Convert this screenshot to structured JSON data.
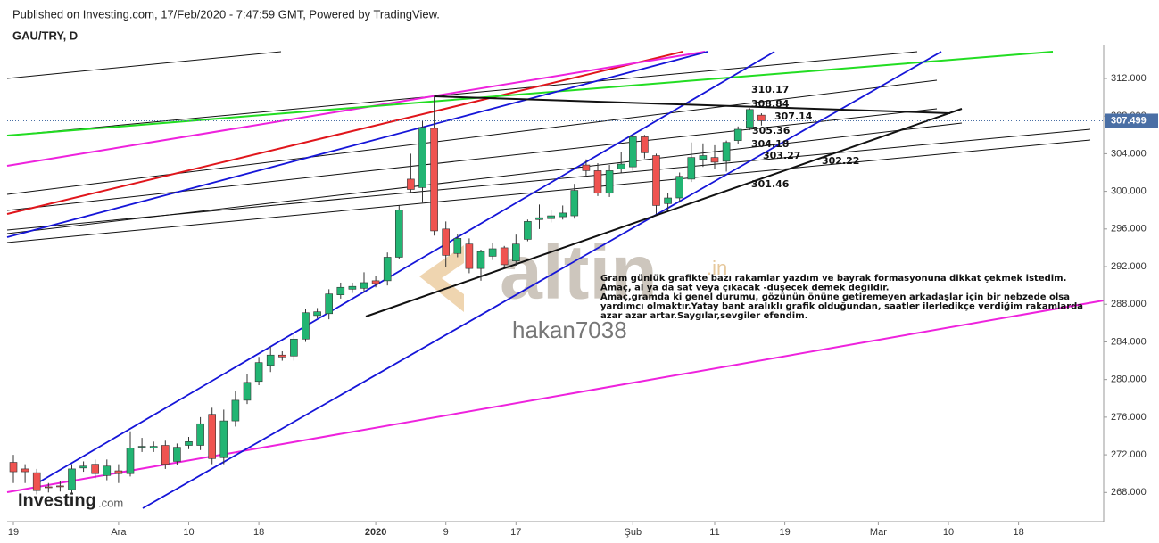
{
  "chart_data": {
    "type": "candlestick",
    "title": "GAU/TRY, D",
    "subtitle": "Published on Investing.com, 17/Feb/2020 - 7:47:59 GMT, Powered by TradingView.",
    "watermark": [
      "altin",
      ".in"
    ],
    "author": "hakan7038",
    "logo": [
      "Investing",
      ".com"
    ],
    "categories": [
      "19",
      null,
      null,
      null,
      null,
      null,
      null,
      null,
      null,
      "Ara",
      null,
      null,
      null,
      null,
      null,
      "10",
      null,
      null,
      null,
      null,
      null,
      "18",
      null,
      null,
      null,
      null,
      null,
      null,
      null,
      null,
      null,
      "2020",
      null,
      null,
      null,
      null,
      null,
      "9",
      null,
      null,
      null,
      null,
      null,
      "17",
      null,
      null,
      null,
      null,
      null,
      null,
      null,
      null,
      null,
      "Şub",
      null,
      null,
      null,
      null,
      null,
      null,
      "11",
      null,
      null,
      null,
      null,
      null,
      "19",
      null,
      null,
      null,
      null,
      null,
      null,
      null,
      "Mar",
      null,
      null,
      null,
      null,
      null,
      "10",
      null,
      null,
      null,
      null,
      null,
      "18",
      null,
      null,
      null,
      null,
      null,
      null,
      null
    ],
    "open": [
      271.2,
      270.5,
      270.1,
      268.6,
      268.7,
      268.3,
      270.6,
      271,
      269.8,
      270.3,
      270,
      272.9,
      272.7,
      273,
      271.3,
      273,
      273,
      276.3,
      271.7,
      275.6,
      277.8,
      279.8,
      281.5,
      282.6,
      282.5,
      284.3,
      286.8,
      287,
      289,
      289.6,
      289.7,
      290.5,
      290.5,
      293,
      301.3,
      300.4,
      306.7,
      296,
      293.4,
      294.4,
      291.8,
      293.1,
      294,
      292.6,
      294.9,
      297,
      297.1,
      297.3,
      297.4,
      302.8,
      302.2,
      299.8,
      302.4,
      302.6,
      305.8,
      303.8,
      298.7,
      299.3,
      301.3,
      303.4,
      303.6,
      303.2,
      305.4,
      306.8,
      308.1,
      null,
      null,
      null,
      null,
      null,
      null,
      null,
      null,
      null,
      null,
      null,
      null,
      null,
      null,
      null,
      null,
      null,
      null,
      null,
      null,
      null,
      null,
      null,
      null,
      null,
      null,
      null,
      null,
      null
    ],
    "high": [
      272,
      271,
      270.5,
      269,
      269.2,
      271,
      271.3,
      271.5,
      271.5,
      271,
      274.5,
      273.8,
      273.4,
      273.5,
      273.2,
      273.9,
      276,
      277,
      276.8,
      278.8,
      280.6,
      282.4,
      283.5,
      283,
      285,
      287.5,
      287.6,
      289.6,
      290.3,
      290.3,
      291.4,
      291,
      293.5,
      298.5,
      304,
      307.5,
      310.17,
      296.8,
      295.5,
      295,
      293.8,
      294.5,
      294.2,
      295.4,
      297,
      298.6,
      298,
      298.5,
      300.8,
      303.4,
      303,
      302.8,
      304.2,
      306.1,
      306,
      304,
      299.8,
      302,
      305.2,
      305.1,
      304.9,
      305.4,
      306.9,
      308.84,
      308.3,
      null,
      null,
      null,
      null,
      null,
      null,
      null,
      null,
      null,
      null,
      null,
      null,
      null,
      null,
      null,
      null,
      null,
      null,
      null,
      null,
      null,
      null,
      null,
      null,
      null,
      null,
      null,
      null,
      null
    ],
    "low": [
      269,
      269,
      267.8,
      268,
      268.1,
      267.8,
      270.2,
      269.5,
      269.3,
      269,
      269.7,
      272.3,
      272.3,
      270.5,
      270.9,
      272.6,
      272.5,
      271,
      271,
      275,
      277.4,
      279.4,
      280.8,
      282,
      282,
      284,
      286.5,
      286.4,
      288.6,
      289.2,
      289.3,
      289.8,
      290,
      292.8,
      299.8,
      298.8,
      295.3,
      292,
      293,
      291.3,
      290.5,
      292.7,
      292,
      292.1,
      294.7,
      296,
      296.7,
      297,
      297.1,
      301.5,
      299.5,
      299.4,
      302,
      302.2,
      303.5,
      297.6,
      298,
      298.8,
      301,
      302.6,
      302.4,
      302.1,
      305,
      306.5,
      307,
      null,
      null,
      null,
      null,
      null,
      null,
      null,
      null,
      null,
      null,
      null,
      null,
      null,
      null,
      null,
      null,
      null,
      null,
      null,
      null,
      null,
      null,
      null,
      null,
      null,
      null,
      null,
      null,
      null
    ],
    "close": [
      270.2,
      270.2,
      268.2,
      268.5,
      268.6,
      270.5,
      270.8,
      270,
      270.8,
      270,
      272.7,
      272.9,
      272.9,
      271,
      272.8,
      273.4,
      275.3,
      271.6,
      275.6,
      277.8,
      279.7,
      281.8,
      282.6,
      282.4,
      284.3,
      287.1,
      287.2,
      289.1,
      289.8,
      289.9,
      290.3,
      290.2,
      293,
      298,
      300.2,
      306.8,
      295.8,
      293.2,
      295,
      291.8,
      293.6,
      293.9,
      292.2,
      294.4,
      296.8,
      297.2,
      297.4,
      297.7,
      300.1,
      302.2,
      299.8,
      302.2,
      302.9,
      305.8,
      304.1,
      298.5,
      299.3,
      301.6,
      303.6,
      303.8,
      303.1,
      305.2,
      306.6,
      308.7,
      307.499,
      null,
      null,
      null,
      null,
      null,
      null,
      null,
      null,
      null,
      null,
      null,
      null,
      null,
      null,
      null,
      null,
      null,
      null,
      null,
      null,
      null,
      null,
      null,
      null,
      null,
      null,
      null,
      null,
      null
    ],
    "up_color": "#22b573",
    "down_color": "#ef5350",
    "ylim": [
      264.9,
      315.6
    ],
    "yticks": [
      {
        "value": 268,
        "label": "268.000"
      },
      {
        "value": 272,
        "label": "272.000"
      },
      {
        "value": 276,
        "label": "276.000"
      },
      {
        "value": 280,
        "label": "280.000"
      },
      {
        "value": 284,
        "label": "284.000"
      },
      {
        "value": 288,
        "label": "288.000"
      },
      {
        "value": 292,
        "label": "292.000"
      },
      {
        "value": 296,
        "label": "296.000"
      },
      {
        "value": 300,
        "label": "300.000"
      },
      {
        "value": 304,
        "label": "304.000"
      },
      {
        "value": 308,
        "label": "308.000"
      },
      {
        "value": 312,
        "label": "312.000"
      }
    ],
    "grid": false,
    "level_labels": [
      "310.17",
      "308.84",
      "307.14",
      "305.36",
      "304.18",
      "303.27",
      "302.22",
      "301.46"
    ],
    "note_lines": [
      "Gram günlük grafikte bazı rakamlar yazdım ve bayrak formasyonuna dikkat çekmek istedim.",
      "Amaç, al ya da sat veya çıkacak -düşecek demek değildir.",
      "Amaç,gramda ki genel durumu, gözünün önüne getiremeyen arkadaşlar için bir nebzede olsa",
      "yardımcı olmaktır.Yatay bant aralıklı grafik olduğundan, saatler ilerledikçe verdiğim rakamlarda",
      " azar azar artar.Saygılar,sevgiler efendim."
    ]
  }
}
